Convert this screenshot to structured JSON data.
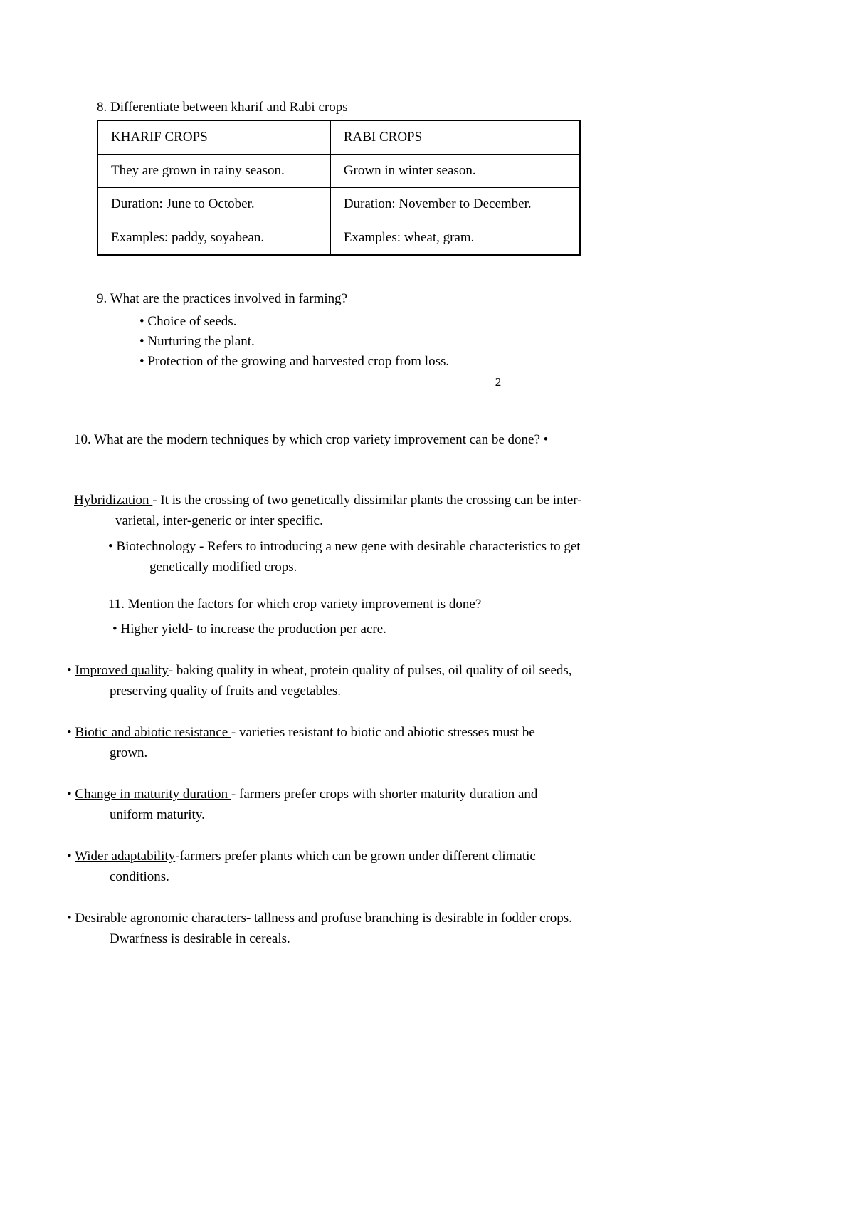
{
  "q8": {
    "title": "8. Differentiate between kharif and Rabi crops",
    "headers": [
      "KHARIF CROPS",
      "RABI CROPS"
    ],
    "rows": [
      [
        "They are grown in rainy season.",
        "Grown in winter season."
      ],
      [
        "Duration: June to October.",
        "Duration: November to December."
      ],
      [
        "Examples: paddy, soyabean.",
        "Examples: wheat, gram."
      ]
    ]
  },
  "q9": {
    "title": "9. What are the practices involved in farming?",
    "items": [
      "Choice of seeds.",
      "Nurturing the plant.",
      "Protection of the growing and harvested crop from loss."
    ]
  },
  "page_number": "2",
  "q10": {
    "text": "10. What are the modern techniques by which crop variety improvement can be done? •"
  },
  "hybridization": {
    "label": "Hybridization ",
    "line1": "- It is the crossing of two genetically dissimilar plants the crossing can be  inter-",
    "line2": "varietal, inter-generic or inter specific."
  },
  "biotech": {
    "line1": "• Biotechnology - Refers to introducing a new gene with desirable characteristics to get",
    "line2": "genetically modified crops."
  },
  "q11": {
    "title": "11. Mention the factors for which crop variety improvement is done?",
    "first_label": "Higher yield",
    "first_text": "- to increase the production per acre."
  },
  "factors": {
    "improved": {
      "label": "Improved quality",
      "line1": "- baking quality in wheat, protein quality of pulses, oil quality of oil seeds,",
      "line2": "preserving quality of fruits and vegetables."
    },
    "biotic": {
      "label": "Biotic and abiotic resistance ",
      "line1": "- varieties resistant to biotic and abiotic stresses must be",
      "line2": "grown."
    },
    "maturity": {
      "label": "Change in maturity duration ",
      "line1": "- farmers prefer crops with shorter maturity duration and",
      "line2": "uniform maturity."
    },
    "adaptability": {
      "label": "Wider adaptability",
      "line1": "-farmers prefer plants which can be grown under different climatic",
      "line2": "conditions."
    },
    "agronomic": {
      "label": "Desirable agronomic characters",
      "line1": "- tallness and profuse branching is desirable in fodder  crops.",
      "line2": "Dwarfness is desirable in cereals."
    }
  }
}
